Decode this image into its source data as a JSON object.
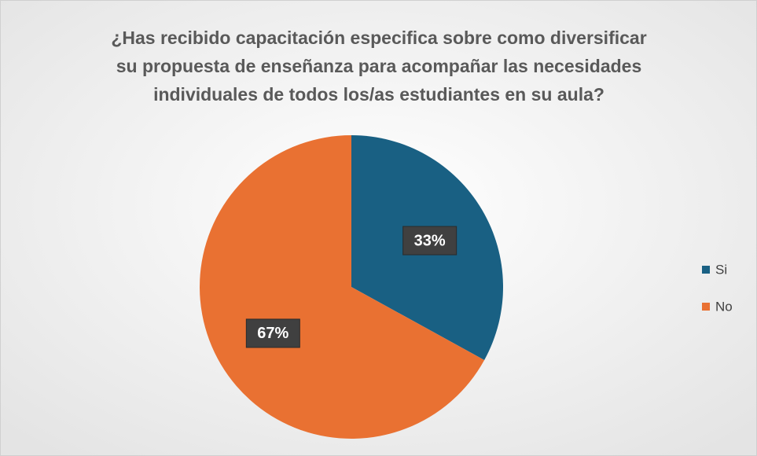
{
  "chart_data": {
    "type": "pie",
    "title": [
      "¿Has recibido capacitación especifica sobre como diversificar",
      "su propuesta de enseñanza para acompañar las necesidades",
      "individuales de todos los/as estudiantes en su aula?"
    ],
    "categories": [
      "Si",
      "No"
    ],
    "values": [
      33,
      67
    ],
    "value_labels": [
      "33%",
      "67%"
    ],
    "colors": [
      "#196083",
      "#e97132"
    ],
    "legend": "right"
  }
}
